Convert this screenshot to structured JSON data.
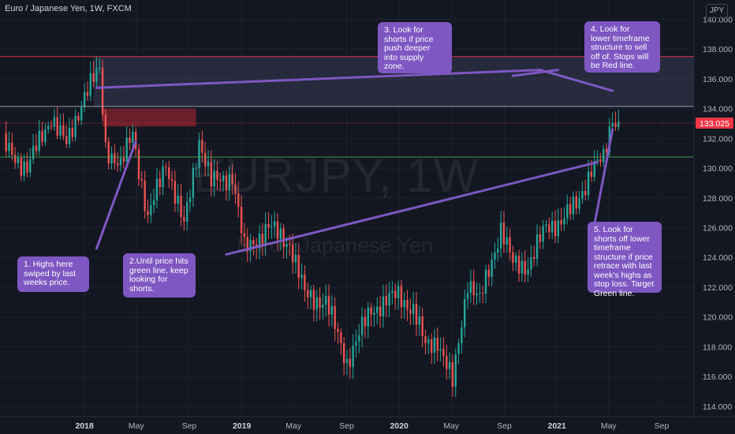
{
  "header": {
    "title": "Euro / Japanese Yen, 1W, FXCM"
  },
  "currency_button": "JPY",
  "watermark": {
    "ticker": "EURJPY, 1W",
    "name": "Euro / Japanese Yen"
  },
  "price_label": {
    "value": "133.025",
    "color": "#f23645"
  },
  "notes": [
    {
      "text": "1. Highs here\nswiped by last\nweeks price."
    },
    {
      "text": "2.Until price hits\ngreen line, keep\nlooking for\nshorts."
    },
    {
      "text": "3. Look for\nshorts if price\npush deeper\ninto supply\nzone."
    },
    {
      "text": "4. Look for\nlower timeframe\nstructure to sell\noff of. Stops will\nbe Red line."
    },
    {
      "text": "5. Look for\nshorts off lower\ntimeframe\nstructure if price\nretrace with last\nweek's highs as\nstop loss. Target\nGreen line."
    }
  ],
  "colors": {
    "up": "#26a69a",
    "down": "#ef5350",
    "annotation": "#7e57c2",
    "background": "#131722"
  },
  "chart_data": {
    "type": "candlestick",
    "y_axis": {
      "ticks": [
        114,
        116,
        118,
        120,
        122,
        124,
        126,
        128,
        130,
        132,
        134,
        136,
        138,
        140
      ],
      "tick_labels": [
        "114.000",
        "116.000",
        "118.000",
        "120.000",
        "122.000",
        "124.000",
        "126.000",
        "128.000",
        "130.000",
        "132.000",
        "134.000",
        "136.000",
        "138.000",
        "140.000"
      ],
      "range": [
        113.3,
        141.3
      ]
    },
    "x_axis": {
      "ticks": [
        {
          "label": "2018",
          "date": "2018-01-01",
          "bold": true
        },
        {
          "label": "May",
          "date": "2018-05-01",
          "bold": false
        },
        {
          "label": "Sep",
          "date": "2018-09-01",
          "bold": false
        },
        {
          "label": "2019",
          "date": "2019-01-01",
          "bold": true
        },
        {
          "label": "May",
          "date": "2019-05-01",
          "bold": false
        },
        {
          "label": "Sep",
          "date": "2019-09-01",
          "bold": false
        },
        {
          "label": "2020",
          "date": "2020-01-01",
          "bold": true
        },
        {
          "label": "May",
          "date": "2020-05-01",
          "bold": false
        },
        {
          "label": "Sep",
          "date": "2020-09-01",
          "bold": false
        },
        {
          "label": "2021",
          "date": "2021-01-01",
          "bold": true
        },
        {
          "label": "May",
          "date": "2021-05-01",
          "bold": false
        },
        {
          "label": "Sep",
          "date": "2021-09-01",
          "bold": false
        }
      ],
      "range": [
        "2017-06-19",
        "2021-11-15"
      ]
    },
    "series": [
      {
        "price_path": [
          {
            "date": "2017-06-26",
            "close": 131.5
          },
          {
            "date": "2017-08-21",
            "close": 130.0
          },
          {
            "date": "2017-10-16",
            "close": 133.5
          },
          {
            "date": "2017-11-20",
            "close": 131.5
          },
          {
            "date": "2018-01-01",
            "close": 135.0
          },
          {
            "date": "2018-02-05",
            "close": 136.5
          },
          {
            "date": "2018-02-19",
            "close": 131.5
          },
          {
            "date": "2018-03-26",
            "close": 130.0
          },
          {
            "date": "2018-04-23",
            "close": 132.5
          },
          {
            "date": "2018-05-28",
            "close": 126.5
          },
          {
            "date": "2018-07-09",
            "close": 130.5
          },
          {
            "date": "2018-08-20",
            "close": 126.0
          },
          {
            "date": "2018-09-24",
            "close": 132.0
          },
          {
            "date": "2018-10-22",
            "close": 129.0
          },
          {
            "date": "2018-12-10",
            "close": 129.5
          },
          {
            "date": "2019-01-07",
            "close": 124.5
          },
          {
            "date": "2019-03-04",
            "close": 126.0
          },
          {
            "date": "2019-04-22",
            "close": 125.0
          },
          {
            "date": "2019-05-27",
            "close": 121.5
          },
          {
            "date": "2019-07-15",
            "close": 121.0
          },
          {
            "date": "2019-09-02",
            "close": 117.0
          },
          {
            "date": "2019-10-28",
            "close": 120.5
          },
          {
            "date": "2019-12-30",
            "close": 121.5
          },
          {
            "date": "2020-02-03",
            "close": 120.5
          },
          {
            "date": "2020-03-02",
            "close": 118.0
          },
          {
            "date": "2020-03-30",
            "close": 118.5
          },
          {
            "date": "2020-05-04",
            "close": 115.5
          },
          {
            "date": "2020-06-08",
            "close": 122.5
          },
          {
            "date": "2020-07-06",
            "close": 121.0
          },
          {
            "date": "2020-08-24",
            "close": 126.0
          },
          {
            "date": "2020-09-21",
            "close": 123.5
          },
          {
            "date": "2020-10-26",
            "close": 123.5
          },
          {
            "date": "2020-12-07",
            "close": 126.0
          },
          {
            "date": "2021-01-11",
            "close": 126.5
          },
          {
            "date": "2021-02-15",
            "close": 127.5
          },
          {
            "date": "2021-03-22",
            "close": 130.0
          },
          {
            "date": "2021-04-19",
            "close": 130.5
          },
          {
            "date": "2021-05-10",
            "close": 133.5
          },
          {
            "date": "2021-05-24",
            "close": 133.0
          }
        ]
      }
    ],
    "levels": [
      {
        "value": 137.5,
        "color": "#f23645"
      },
      {
        "value": 134.15,
        "color": "#b2b5be"
      },
      {
        "value": 130.75,
        "color": "#4caf50"
      },
      {
        "value": 133.025,
        "color": "#f23645",
        "dashed": true
      }
    ],
    "zones": [
      {
        "y_from": 134.15,
        "y_to": 137.5,
        "date_from": "2018-01-22",
        "color": "#4a4e6e"
      },
      {
        "y_from": 132.8,
        "y_to": 134.0,
        "date_from": "2018-02-12",
        "date_to": "2018-09-17",
        "color": "#b22833"
      }
    ],
    "trendlines": [
      {
        "from": {
          "date": "2018-04-30",
          "y": 131.8
        },
        "to": {
          "date": "2018-01-29",
          "y": 124.6
        }
      },
      {
        "from": {
          "date": "2018-11-26",
          "y": 124.2
        },
        "to": {
          "date": "2021-04-05",
          "y": 130.4
        }
      },
      {
        "from": {
          "date": "2018-01-29",
          "y": 135.4
        },
        "to": {
          "date": "2020-11-23",
          "y": 136.6
        }
      },
      {
        "from": {
          "date": "2020-11-23",
          "y": 136.6
        },
        "to": {
          "date": "2021-05-10",
          "y": 135.2
        }
      },
      {
        "from": {
          "date": "2021-01-04",
          "y": 136.6
        },
        "to": {
          "date": "2020-09-21",
          "y": 136.2
        }
      },
      {
        "from": {
          "date": "2021-03-29",
          "y": 126.2
        },
        "to": {
          "date": "2021-05-10",
          "y": 132.6
        }
      }
    ]
  }
}
